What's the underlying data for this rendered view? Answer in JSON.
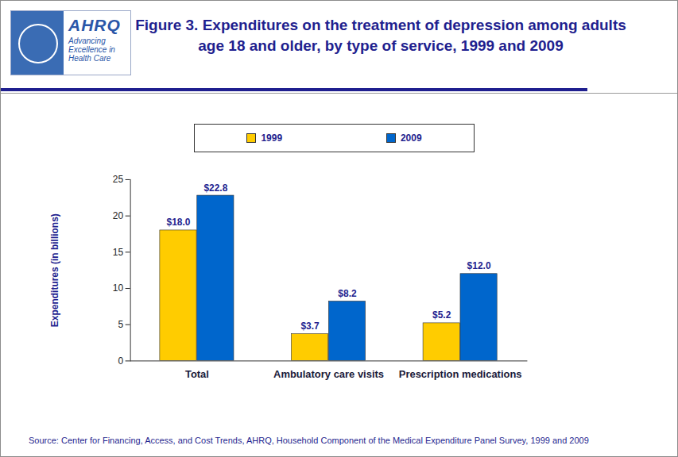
{
  "logo": {
    "name": "AHRQ",
    "tagline": "Advancing Excellence in Health Care"
  },
  "chart_data": {
    "type": "bar",
    "title": "Figure 3. Expenditures on the treatment of depression among adults age 18 and older, by type of service, 1999 and 2009",
    "ylabel": "Expenditures (in billions)",
    "categories": [
      "Total",
      "Ambulatory care visits",
      "Prescription medications"
    ],
    "series": [
      {
        "name": "1999",
        "color": "#ffcc00",
        "values": [
          18.0,
          3.7,
          5.2
        ],
        "value_labels": [
          "$18.0",
          "$3.7",
          "$5.2"
        ]
      },
      {
        "name": "2009",
        "color": "#0066cc",
        "values": [
          22.8,
          8.2,
          12.0
        ],
        "value_labels": [
          "$22.8",
          "$8.2",
          "$12.0"
        ]
      }
    ],
    "ylim": [
      0,
      25
    ],
    "yticks": [
      0,
      5,
      10,
      15,
      20,
      25
    ],
    "data_labels": true,
    "legend": "top",
    "source": "Source: Center for Financing, Access, and Cost Trends, AHRQ, Household Component of the Medical Expenditure Panel Survey,  1999 and 2009"
  }
}
